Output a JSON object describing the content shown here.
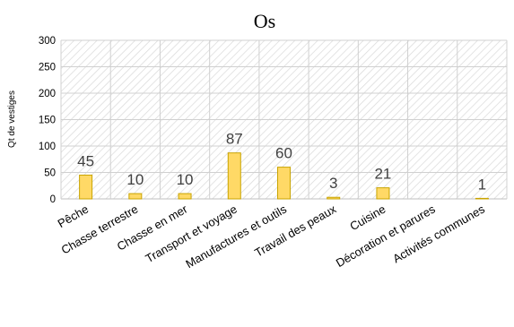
{
  "chart_data": {
    "type": "bar",
    "title": "Os",
    "xlabel": "",
    "ylabel": "Qt de vestiges",
    "ylim": [
      0,
      300
    ],
    "yticks": [
      0,
      50,
      100,
      150,
      200,
      250,
      300
    ],
    "grid": true,
    "categories": [
      "Pêche",
      "Chasse terrestre",
      "Chasse en mer",
      "Transport et voyage",
      "Manufactures et outils",
      "Travail des peaux",
      "Cuisine",
      "Décoration et parures",
      "Activités communes"
    ],
    "values": [
      45,
      10,
      10,
      87,
      60,
      3,
      21,
      0,
      1
    ],
    "data_labels": [
      "45",
      "10",
      "10",
      "87",
      "60",
      "3",
      "21",
      "",
      "1"
    ],
    "colors": {
      "bar_fill": "#ffd966",
      "bar_stroke": "#c9a400",
      "hatch": "#d9d9d9"
    }
  }
}
